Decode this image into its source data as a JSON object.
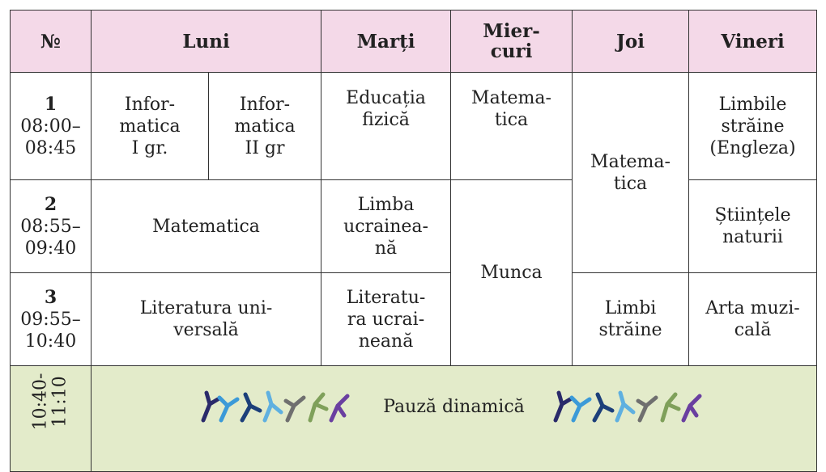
{
  "table": {
    "header": [
      "№",
      "Luni",
      "Marți",
      "Mier-\ncuri",
      "Joi",
      "Vineri"
    ],
    "rows": [
      {
        "number": "1",
        "time": "08:00–\n08:45",
        "cells": [
          "Infor-\nmatica\nI gr.",
          "Infor-\nmatica\nII gr",
          "Educația\nfizică",
          "Matema-\ntica",
          "Matema-\ntica",
          "Limbile\nstrăine\n(Engleza)"
        ]
      },
      {
        "number": "2",
        "time": "08:55–\n09:40",
        "cells": [
          "Matematica",
          "Limba\nucrainea-\nnă",
          "Munca",
          "Științele\nnaturii"
        ]
      },
      {
        "number": "3",
        "time": "09:55–\n10:40",
        "cells": [
          "Literatura uni-\nversală",
          "Literatu-\nra ucrai-\nneană",
          "Limbi\nstrăine",
          "Arta muzi-\ncală"
        ]
      }
    ],
    "break": {
      "time": "10:40-\n11:10",
      "label": "Pauză dinamică"
    }
  }
}
